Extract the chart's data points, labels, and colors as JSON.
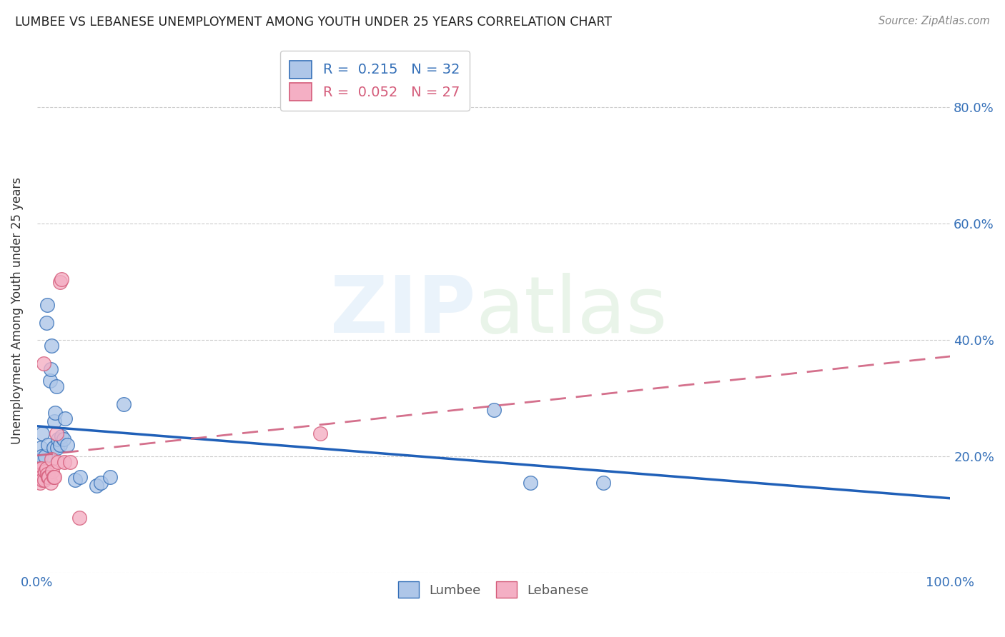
{
  "title": "LUMBEE VS LEBANESE UNEMPLOYMENT AMONG YOUTH UNDER 25 YEARS CORRELATION CHART",
  "source": "Source: ZipAtlas.com",
  "ylabel": "Unemployment Among Youth under 25 years",
  "xlim": [
    0.0,
    1.0
  ],
  "ylim": [
    0.0,
    0.9
  ],
  "x_ticks": [
    0.0,
    0.2,
    0.4,
    0.6,
    0.8,
    1.0
  ],
  "x_tick_labels": [
    "0.0%",
    "",
    "",
    "",
    "",
    "100.0%"
  ],
  "y_ticks": [
    0.0,
    0.2,
    0.4,
    0.6,
    0.8
  ],
  "y_tick_labels_right": [
    "",
    "20.0%",
    "40.0%",
    "60.0%",
    "80.0%"
  ],
  "lumbee_color": "#aec6e8",
  "lebanese_color": "#f4afc4",
  "lumbee_edge_color": "#3570b8",
  "lebanese_edge_color": "#d45c7a",
  "lumbee_line_color": "#2060b8",
  "lebanese_line_color": "#d06080",
  "lumbee_R": 0.215,
  "lumbee_N": 32,
  "lebanese_R": 0.052,
  "lebanese_N": 27,
  "lumbee_x": [
    0.003,
    0.004,
    0.005,
    0.006,
    0.008,
    0.009,
    0.01,
    0.011,
    0.012,
    0.014,
    0.015,
    0.016,
    0.018,
    0.019,
    0.02,
    0.021,
    0.022,
    0.023,
    0.025,
    0.027,
    0.029,
    0.031,
    0.033,
    0.042,
    0.047,
    0.065,
    0.07,
    0.08,
    0.095,
    0.5,
    0.54,
    0.62
  ],
  "lumbee_y": [
    0.195,
    0.215,
    0.2,
    0.24,
    0.175,
    0.2,
    0.43,
    0.46,
    0.22,
    0.33,
    0.35,
    0.39,
    0.215,
    0.26,
    0.275,
    0.32,
    0.215,
    0.23,
    0.22,
    0.235,
    0.23,
    0.265,
    0.22,
    0.16,
    0.165,
    0.15,
    0.155,
    0.165,
    0.29,
    0.28,
    0.155,
    0.155
  ],
  "lebanese_x": [
    0.002,
    0.003,
    0.003,
    0.004,
    0.005,
    0.005,
    0.006,
    0.007,
    0.008,
    0.009,
    0.01,
    0.011,
    0.012,
    0.013,
    0.015,
    0.016,
    0.017,
    0.018,
    0.019,
    0.021,
    0.023,
    0.025,
    0.027,
    0.03,
    0.036,
    0.046,
    0.31
  ],
  "lebanese_y": [
    0.175,
    0.155,
    0.18,
    0.17,
    0.18,
    0.165,
    0.16,
    0.36,
    0.16,
    0.175,
    0.18,
    0.17,
    0.165,
    0.165,
    0.155,
    0.195,
    0.175,
    0.165,
    0.165,
    0.24,
    0.19,
    0.5,
    0.505,
    0.19,
    0.19,
    0.095,
    0.24
  ],
  "background_color": "#ffffff",
  "grid_color": "#cccccc",
  "title_color": "#222222",
  "axis_tick_color": "#3570b8"
}
